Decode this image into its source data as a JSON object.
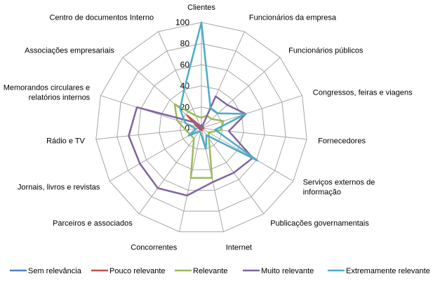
{
  "chart_data": {
    "type": "radar",
    "categories": [
      "Clientes",
      "Funcionários da empresa",
      "Funcionários públicos",
      "Congressos, feiras e viagens",
      "Fornecedores",
      "Serviços externos de|informação",
      "Publicações governamentais",
      "Internet",
      "Concorrentes",
      "Parceiros e associados",
      "Jornais, livros e revistas",
      "Rádio e TV",
      "Memorandos circulares e|relatórios internos",
      "Associações empresariais",
      "Centro de documentos Interno"
    ],
    "rlim": [
      0,
      100
    ],
    "ticks": [
      "0",
      "20",
      "40",
      "60",
      "80",
      "100"
    ],
    "grid": true,
    "legend_position": "bottom",
    "series": [
      {
        "name": "Sem relevância",
        "color": "#4f81bd",
        "values": [
          0,
          0,
          0,
          0,
          0,
          0,
          0,
          0,
          0,
          0,
          0,
          0,
          0,
          0,
          0
        ]
      },
      {
        "name": "Pouco relevante",
        "color": "#c0504d",
        "values": [
          3,
          2,
          2,
          0,
          2,
          0,
          0,
          2,
          0,
          2,
          0,
          2,
          4,
          18,
          2
        ]
      },
      {
        "name": "Relevante",
        "color": "#9bbb59",
        "values": [
          10,
          13,
          13,
          22,
          18,
          8,
          12,
          48,
          48,
          12,
          12,
          15,
          24,
          34,
          13
        ]
      },
      {
        "name": "Muito relevante",
        "color": "#8064a2",
        "values": [
          0,
          33,
          33,
          44,
          26,
          56,
          52,
          52,
          65,
          70,
          67,
          69,
          64,
          8,
          0
        ]
      },
      {
        "name": "Extremamente relevante",
        "color": "#4bacc6",
        "values": [
          100,
          21,
          21,
          44,
          13,
          61,
          8,
          20,
          4,
          4,
          14,
          5,
          16,
          27,
          40
        ]
      }
    ]
  }
}
